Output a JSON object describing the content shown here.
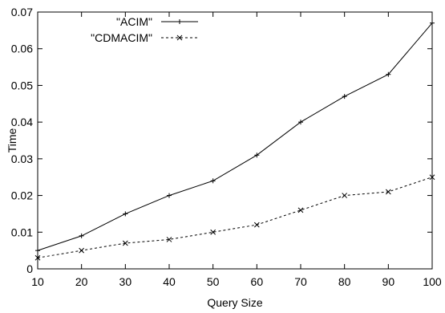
{
  "chart_data": {
    "type": "line",
    "title": "",
    "xlabel": "Query Size",
    "ylabel": "Time",
    "xlim": [
      10,
      100
    ],
    "ylim": [
      0,
      0.07
    ],
    "x_ticks": [
      10,
      20,
      30,
      40,
      50,
      60,
      70,
      80,
      90,
      100
    ],
    "y_ticks": [
      "0",
      "0.01",
      "0.02",
      "0.03",
      "0.04",
      "0.05",
      "0.06",
      "0.07"
    ],
    "grid": false,
    "legend_position": "top-left",
    "x": [
      10,
      20,
      30,
      40,
      50,
      60,
      70,
      80,
      90,
      100
    ],
    "series": [
      {
        "name": "\"ACIM\"",
        "marker": "plus",
        "line_style": "solid",
        "color": "#000000",
        "values": [
          0.005,
          0.009,
          0.015,
          0.02,
          0.024,
          0.031,
          0.04,
          0.047,
          0.053,
          0.067
        ]
      },
      {
        "name": "\"CDMACIM\"",
        "marker": "cross",
        "line_style": "dashed",
        "color": "#000000",
        "values": [
          0.003,
          0.005,
          0.007,
          0.008,
          0.01,
          0.012,
          0.016,
          0.02,
          0.021,
          0.025
        ]
      }
    ]
  }
}
